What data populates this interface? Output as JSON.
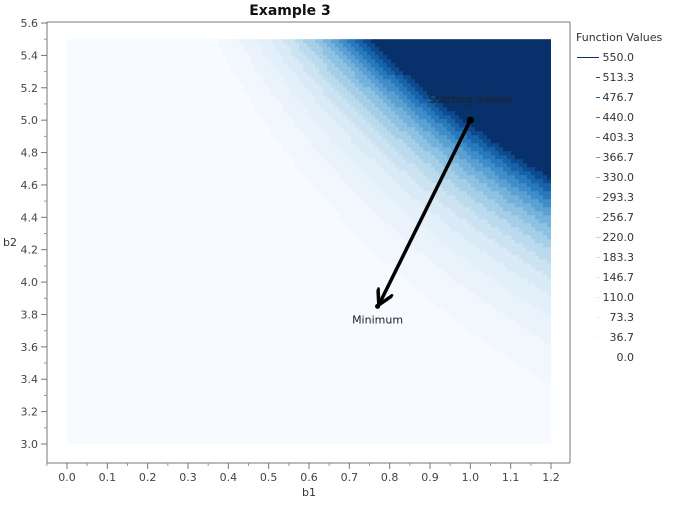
{
  "chart_data": {
    "type": "contour",
    "title": "Example 3",
    "xlabel": "b1",
    "ylabel": "b2",
    "xlim": [
      -0.05,
      1.25
    ],
    "ylim": [
      2.95,
      5.6
    ],
    "grid": false,
    "x_ticks": [
      "0.0",
      "0.1",
      "0.2",
      "0.3",
      "0.4",
      "0.5",
      "0.6",
      "0.7",
      "0.8",
      "0.9",
      "1.0",
      "1.1",
      "1.2"
    ],
    "y_ticks": [
      "3.0",
      "3.2",
      "3.4",
      "3.6",
      "3.8",
      "4.0",
      "4.2",
      "4.4",
      "4.6",
      "4.8",
      "5.0",
      "5.2",
      "5.4",
      "5.6"
    ],
    "data_region": {
      "x": [
        0.0,
        1.2
      ],
      "y": [
        3.0,
        5.5
      ]
    },
    "legend": {
      "title": "Function Values",
      "position": "right",
      "levels": [
        "550.0",
        "513.3",
        "476.7",
        "440.0",
        "403.3",
        "366.7",
        "330.0",
        "293.3",
        "256.7",
        "220.0",
        "183.3",
        "146.7",
        "110.0",
        "73.3",
        "36.7",
        "0.0"
      ]
    },
    "level_colors": [
      "#08306b",
      "#0d4a8f",
      "#1862a8",
      "#2a78bc",
      "#3f8dc9",
      "#5aa1d2",
      "#74b2db",
      "#8ec2e2",
      "#a6cfe7",
      "#bbdaed",
      "#cce3f2",
      "#d9ebf6",
      "#e3f0f9",
      "#eaf3fb",
      "#f1f7fd",
      "#f7fafe"
    ],
    "annotations": [
      {
        "label": "Starting Values",
        "x": 1.0,
        "y": 5.0
      },
      {
        "label": "Minimum",
        "x": 0.77,
        "y": 3.85
      }
    ],
    "path": [
      {
        "x": 1.0,
        "y": 5.0
      },
      {
        "x": 0.77,
        "y": 3.85
      }
    ]
  }
}
